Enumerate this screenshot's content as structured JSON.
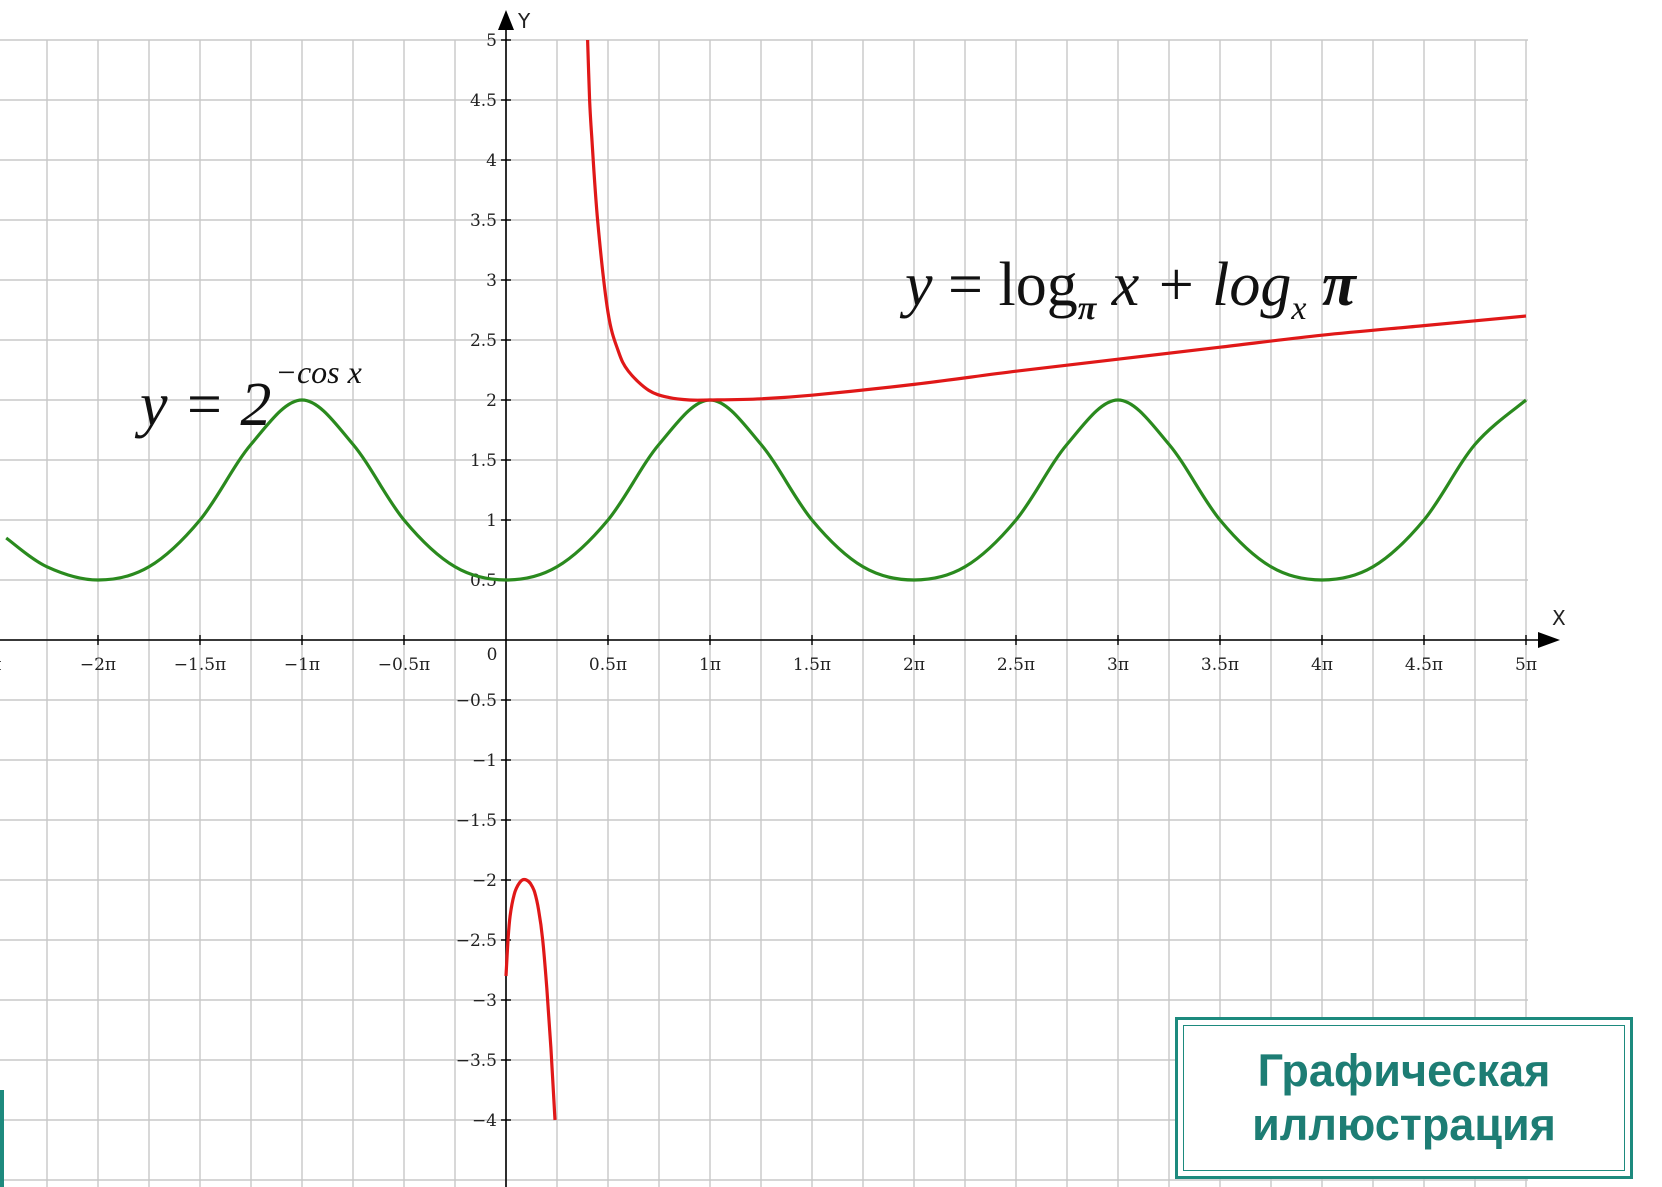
{
  "chart_data": {
    "type": "line",
    "xlabel": "X",
    "ylabel": "Y",
    "x_unit": "π",
    "xlim": [
      -2.45,
      5.0
    ],
    "ylim": [
      -4.0,
      5.0
    ],
    "grid": true,
    "x_ticks": [
      {
        "value": -2.5,
        "label": "π"
      },
      {
        "value": -2,
        "label": "−2π"
      },
      {
        "value": -1.5,
        "label": "−1.5π"
      },
      {
        "value": -1,
        "label": "−1π"
      },
      {
        "value": -0.5,
        "label": "−0.5π"
      },
      {
        "value": 0.5,
        "label": "0.5π"
      },
      {
        "value": 1,
        "label": "1π"
      },
      {
        "value": 1.5,
        "label": "1.5π"
      },
      {
        "value": 2,
        "label": "2π"
      },
      {
        "value": 2.5,
        "label": "2.5π"
      },
      {
        "value": 3,
        "label": "3π"
      },
      {
        "value": 3.5,
        "label": "3.5π"
      },
      {
        "value": 4,
        "label": "4π"
      },
      {
        "value": 4.5,
        "label": "4.5π"
      },
      {
        "value": 5,
        "label": "5π"
      }
    ],
    "origin_label": "0",
    "y_ticks": [
      {
        "value": 5,
        "label": "5"
      },
      {
        "value": 4.5,
        "label": "4.5"
      },
      {
        "value": 4,
        "label": "4"
      },
      {
        "value": 3.5,
        "label": "3.5"
      },
      {
        "value": 3,
        "label": "3"
      },
      {
        "value": 2.5,
        "label": "2.5"
      },
      {
        "value": 2,
        "label": "2"
      },
      {
        "value": 1.5,
        "label": "1.5"
      },
      {
        "value": 1,
        "label": "1"
      },
      {
        "value": 0.5,
        "label": "0.5"
      },
      {
        "value": -0.5,
        "label": "−0.5"
      },
      {
        "value": -1,
        "label": "−1"
      },
      {
        "value": -1.5,
        "label": "−1.5"
      },
      {
        "value": -2,
        "label": "−2"
      },
      {
        "value": -2.5,
        "label": "−2.5"
      },
      {
        "value": -3,
        "label": "−3"
      },
      {
        "value": -3.5,
        "label": "−3.5"
      },
      {
        "value": -4,
        "label": "−4"
      }
    ],
    "series": [
      {
        "color": "#2a8a1e",
        "x": [
          -2.45,
          -2.25,
          -2.0,
          -1.75,
          -1.5,
          -1.25,
          -1.0,
          -0.75,
          -0.5,
          -0.25,
          0.0,
          0.25,
          0.5,
          0.75,
          1.0,
          1.25,
          1.5,
          1.75,
          2.0,
          2.25,
          2.5,
          2.75,
          3.0,
          3.25,
          3.5,
          3.75,
          4.0,
          4.25,
          4.5,
          4.75,
          5.0
        ],
        "y": [
          0.85,
          0.61,
          0.5,
          0.61,
          1.0,
          1.63,
          2.0,
          1.63,
          1.0,
          0.61,
          0.5,
          0.61,
          1.0,
          1.63,
          2.0,
          1.63,
          1.0,
          0.61,
          0.5,
          0.61,
          1.0,
          1.63,
          2.0,
          1.63,
          1.0,
          0.61,
          0.5,
          0.61,
          1.0,
          1.63,
          2.0
        ]
      },
      {
        "color": "#e01818",
        "x": [
          0.4,
          0.41,
          0.42,
          0.45,
          0.5,
          0.55,
          0.6,
          0.7,
          0.8,
          0.9,
          1.0,
          1.25,
          1.5,
          2.0,
          2.5,
          3.0,
          3.5,
          4.0,
          4.5,
          5.0
        ],
        "y": [
          5.0,
          4.5,
          4.2,
          3.48,
          2.73,
          2.41,
          2.24,
          2.08,
          2.02,
          2.0,
          2.0,
          2.01,
          2.04,
          2.13,
          2.24,
          2.34,
          2.44,
          2.54,
          2.62,
          2.7
        ]
      },
      {
        "color": "#e01818",
        "x": [
          0.0,
          0.01,
          0.02,
          0.04,
          0.06,
          0.08,
          0.1,
          0.12,
          0.14,
          0.16,
          0.18,
          0.2,
          0.22,
          0.24
        ],
        "y": [
          -2.8,
          -2.5,
          -2.3,
          -2.12,
          -2.04,
          -2.0,
          -2.0,
          -2.03,
          -2.1,
          -2.25,
          -2.5,
          -2.9,
          -3.4,
          -4.0
        ]
      }
    ]
  },
  "formulas": {
    "cos_lhs": "y = 2",
    "cos_exp": "−cos x",
    "log_y": "y",
    "log_eq": " = log",
    "log_pi": "π",
    "log_x": " x + log",
    "log_sub_x": "x",
    "log_pi2": " π"
  },
  "badge": {
    "line1": "Графическая",
    "line2": "иллюстрация"
  }
}
